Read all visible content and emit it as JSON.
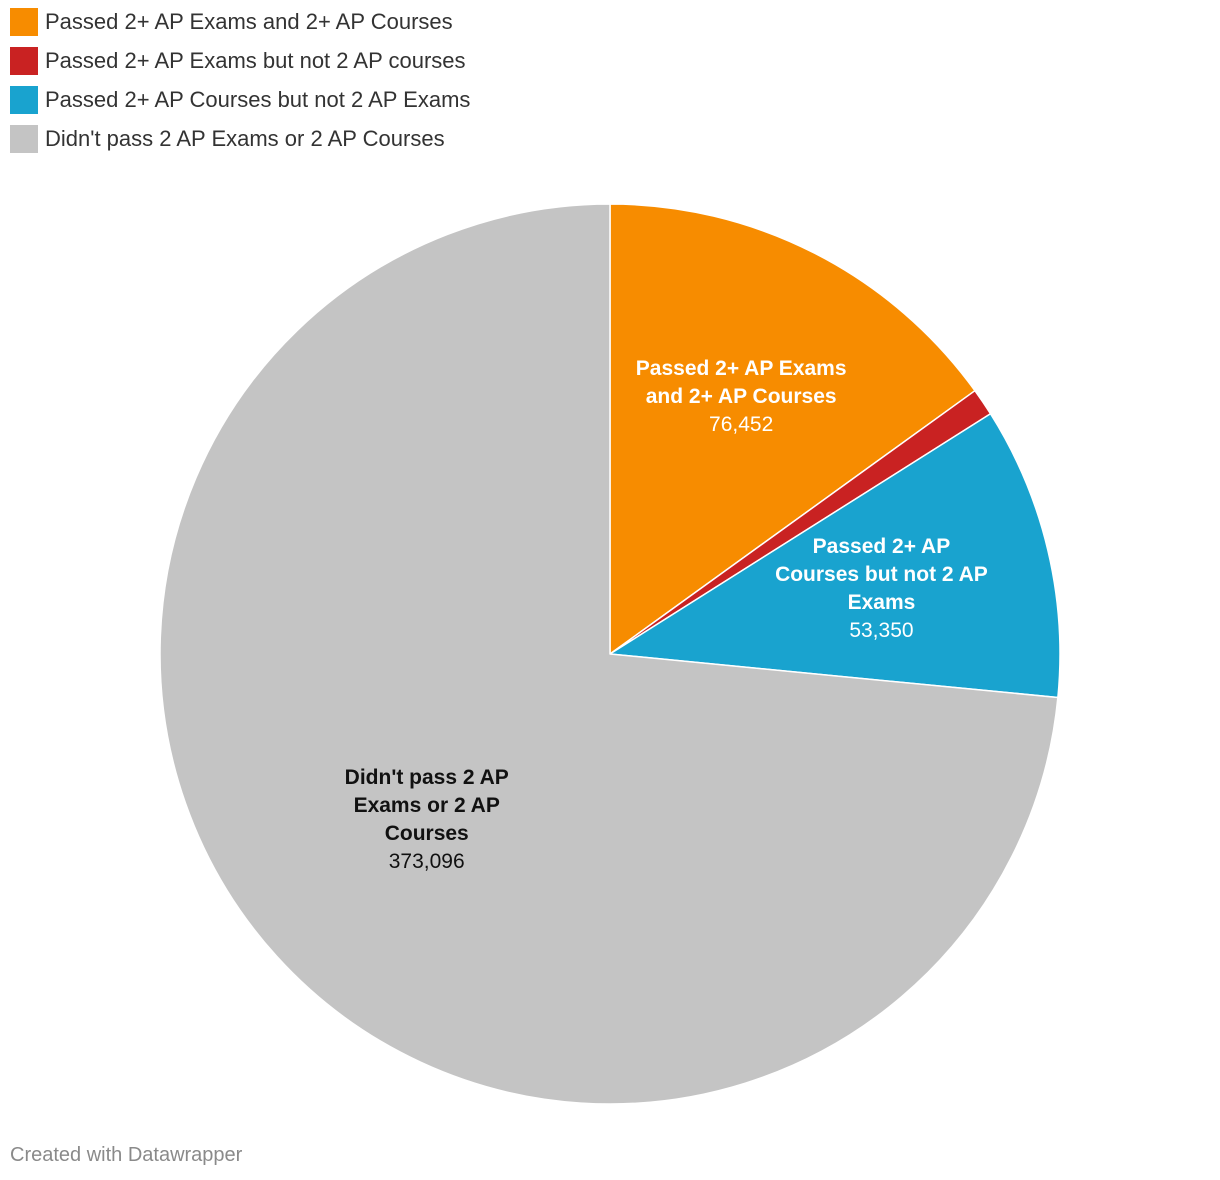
{
  "chart_data": {
    "type": "pie",
    "categories": [
      "Passed 2+ AP Exams and 2+ AP Courses",
      "Passed 2+ AP Exams but not 2 AP courses",
      "Passed 2+ AP Courses but not 2 AP Exams",
      "Didn't pass 2 AP Exams or 2 AP Courses"
    ],
    "values": [
      76452,
      5000,
      53350,
      373096
    ],
    "value_labels": [
      "76,452",
      "",
      "53,350",
      "373,096"
    ],
    "slice_labels": [
      [
        "Passed 2+ AP Exams",
        "and 2+ AP Courses"
      ],
      [],
      [
        "Passed 2+ AP",
        "Courses but not 2 AP",
        "Exams"
      ],
      [
        "Didn't pass 2 AP",
        "Exams or 2 AP",
        "Courses"
      ]
    ],
    "colors": [
      "#f78c00",
      "#c92222",
      "#19a3cf",
      "#c4c4c4"
    ],
    "label_colors": [
      "#ffffff",
      "#ffffff",
      "#ffffff",
      "#111111"
    ],
    "legend_position": "top-left",
    "start_angle_deg": 0,
    "direction": "clockwise"
  },
  "legend": [
    {
      "label": "Passed 2+ AP Exams and 2+ AP Courses",
      "color": "#f78c00"
    },
    {
      "label": "Passed 2+ AP Exams but not 2 AP courses",
      "color": "#c92222"
    },
    {
      "label": "Passed 2+ AP Courses but not 2 AP Exams",
      "color": "#19a3cf"
    },
    {
      "label": "Didn't pass 2 AP Exams or 2 AP Courses",
      "color": "#c4c4c4"
    }
  ],
  "footer": {
    "credit": "Created with Datawrapper"
  }
}
